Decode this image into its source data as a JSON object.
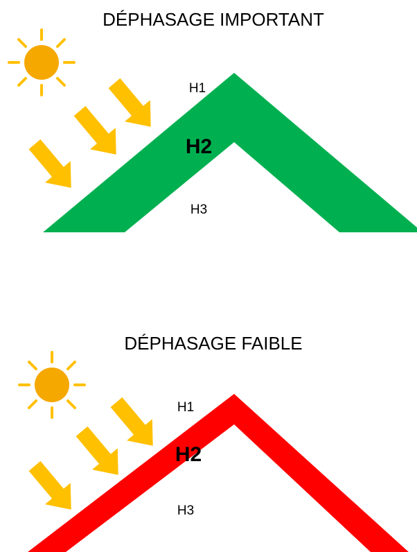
{
  "panels": [
    {
      "title": "DÉPHASAGE IMPORTANT",
      "labels": [
        "H1",
        "H2",
        "H3"
      ]
    },
    {
      "title": "DÉPHASAGE FAIBLE",
      "labels": [
        "H1",
        "H2",
        "H3"
      ]
    }
  ]
}
